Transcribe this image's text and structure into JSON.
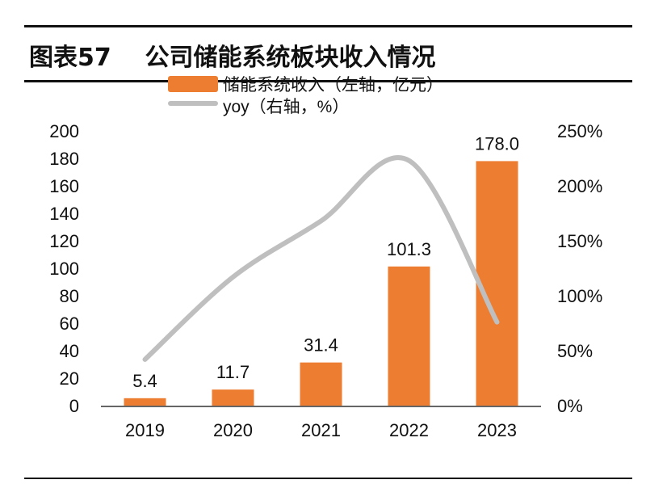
{
  "header": {
    "figure_no": "图表57",
    "title": "公司储能系统板块收入情况"
  },
  "chart_data": {
    "type": "bar+line",
    "categories": [
      "2019",
      "2020",
      "2021",
      "2022",
      "2023"
    ],
    "series": [
      {
        "name": "储能系统收入（左轴，亿元）",
        "type": "bar",
        "axis": "left",
        "values": [
          5.4,
          11.7,
          31.4,
          101.3,
          178.0
        ],
        "labels": [
          "5.4",
          "11.7",
          "31.4",
          "101.3",
          "178.0"
        ],
        "color": "#ED7D31"
      },
      {
        "name": "yoy（右轴，%）",
        "type": "line",
        "axis": "right",
        "values": [
          42,
          117,
          168,
          223,
          76
        ],
        "color": "#BFBFBF"
      }
    ],
    "left_axis": {
      "range": [
        0,
        200
      ],
      "ticks": [
        "0",
        "20",
        "40",
        "60",
        "80",
        "100",
        "120",
        "140",
        "160",
        "180",
        "200"
      ]
    },
    "right_axis": {
      "range": [
        0,
        250
      ],
      "ticks": [
        "0%",
        "50%",
        "100%",
        "150%",
        "200%",
        "250%"
      ]
    },
    "legend_placement": "top-center",
    "grid": false
  }
}
